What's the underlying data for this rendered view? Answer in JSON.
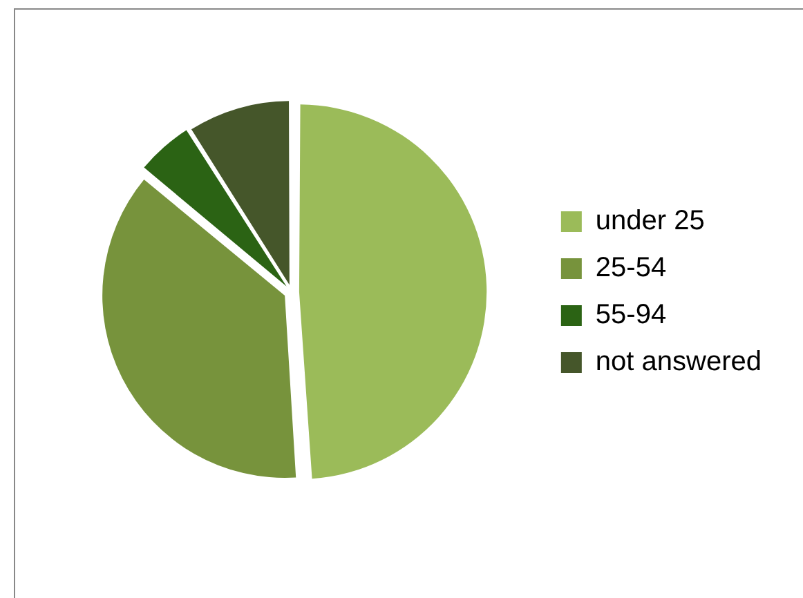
{
  "chart_data": {
    "type": "pie",
    "categories": [
      "under 25",
      "25-54",
      "55-94",
      "not answered"
    ],
    "values": [
      49,
      37,
      5,
      9
    ],
    "colors": [
      "#9bbb59",
      "#77933c",
      "#2b6314",
      "#45562a"
    ],
    "legend": "right"
  }
}
